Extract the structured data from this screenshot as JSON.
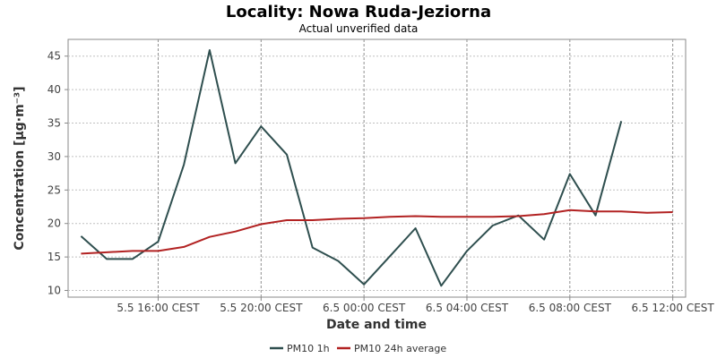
{
  "chart_data": {
    "type": "line",
    "title": "Locality: Nowa Ruda-Jeziorna",
    "subtitle": "Actual unverified data",
    "xlabel": "Date and time",
    "ylabel": "Concentration [μg·m⁻³]",
    "ylim": [
      9,
      47.5
    ],
    "yticks": [
      10,
      15,
      20,
      25,
      30,
      35,
      40,
      45
    ],
    "xlim": [
      "2025-05-05 12:30",
      "2025-05-06 12:30"
    ],
    "xticks": [
      {
        "time": "2025-05-05 16:00",
        "label": "5.5 16:00 CEST"
      },
      {
        "time": "2025-05-05 20:00",
        "label": "5.5 20:00 CEST"
      },
      {
        "time": "2025-05-06 00:00",
        "label": "6.5 00:00 CEST"
      },
      {
        "time": "2025-05-06 04:00",
        "label": "6.5 04:00 CEST"
      },
      {
        "time": "2025-05-06 08:00",
        "label": "6.5 08:00 CEST"
      },
      {
        "time": "2025-05-06 12:00",
        "label": "6.5 12:00 CEST"
      }
    ],
    "x": [
      "2025-05-05 13:00",
      "2025-05-05 14:00",
      "2025-05-05 15:00",
      "2025-05-05 16:00",
      "2025-05-05 17:00",
      "2025-05-05 18:00",
      "2025-05-05 19:00",
      "2025-05-05 20:00",
      "2025-05-05 21:00",
      "2025-05-05 22:00",
      "2025-05-05 23:00",
      "2025-05-06 00:00",
      "2025-05-06 01:00",
      "2025-05-06 02:00",
      "2025-05-06 03:00",
      "2025-05-06 04:00",
      "2025-05-06 05:00",
      "2025-05-06 06:00",
      "2025-05-06 07:00",
      "2025-05-06 08:00",
      "2025-05-06 09:00",
      "2025-05-06 10:00",
      "2025-05-06 11:00",
      "2025-05-06 12:00"
    ],
    "series": [
      {
        "name": "PM10 1h",
        "color": "#2f4f4f",
        "values": [
          18.1,
          14.7,
          14.7,
          17.3,
          28.8,
          45.9,
          29.0,
          34.5,
          30.3,
          16.4,
          14.4,
          10.9,
          15.1,
          19.3,
          10.7,
          15.9,
          19.7,
          21.2,
          17.6,
          27.4,
          21.2,
          35.3,
          null,
          null
        ]
      },
      {
        "name": "PM10 24h average",
        "color": "#b22222",
        "values": [
          15.5,
          15.7,
          15.9,
          15.9,
          16.5,
          18.0,
          18.8,
          19.9,
          20.5,
          20.5,
          20.7,
          20.8,
          21.0,
          21.1,
          21.0,
          21.0,
          21.0,
          21.1,
          21.4,
          22.0,
          21.8,
          21.8,
          21.6,
          21.7
        ]
      }
    ],
    "grid": true,
    "legend_position": "bottom"
  }
}
